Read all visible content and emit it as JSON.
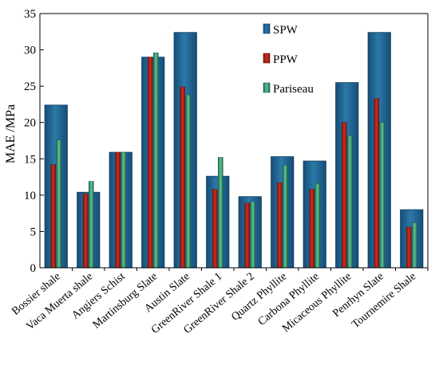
{
  "chart_data": {
    "type": "bar",
    "title": "",
    "xlabel": "",
    "ylabel": "MAE /MPa",
    "ylim": [
      0,
      35
    ],
    "yticks": [
      0,
      5,
      10,
      15,
      20,
      25,
      30,
      35
    ],
    "grid": false,
    "legend_position": "top-right",
    "categories": [
      "Bossier shale",
      "Vaca Muerta shale",
      "Angiers Schist",
      "Martinsburg Slate",
      "Austin Slate",
      "GreenRiver Shale 1",
      "GreenRiver Shale 2",
      "Quartz Phyllite",
      "Carbona Phyllite",
      "Micaceous Phyllite",
      "Penrhyn Slate",
      "Tournemire Shale"
    ],
    "series": [
      {
        "name": "SPW",
        "color": "#1d5f8f",
        "values": [
          22.4,
          10.4,
          15.9,
          29.0,
          32.4,
          12.6,
          9.8,
          15.3,
          14.7,
          25.5,
          32.4,
          8.0
        ]
      },
      {
        "name": "PPW",
        "color": "#b2231b",
        "values": [
          14.2,
          10.2,
          15.9,
          29.0,
          24.9,
          10.8,
          8.9,
          11.7,
          10.8,
          20.0,
          23.3,
          5.6
        ]
      },
      {
        "name": "Pariseau",
        "color": "#3a9a72",
        "values": [
          17.6,
          11.9,
          15.9,
          29.6,
          23.8,
          15.2,
          9.1,
          14.1,
          11.6,
          18.2,
          20.0,
          6.2
        ]
      }
    ]
  }
}
